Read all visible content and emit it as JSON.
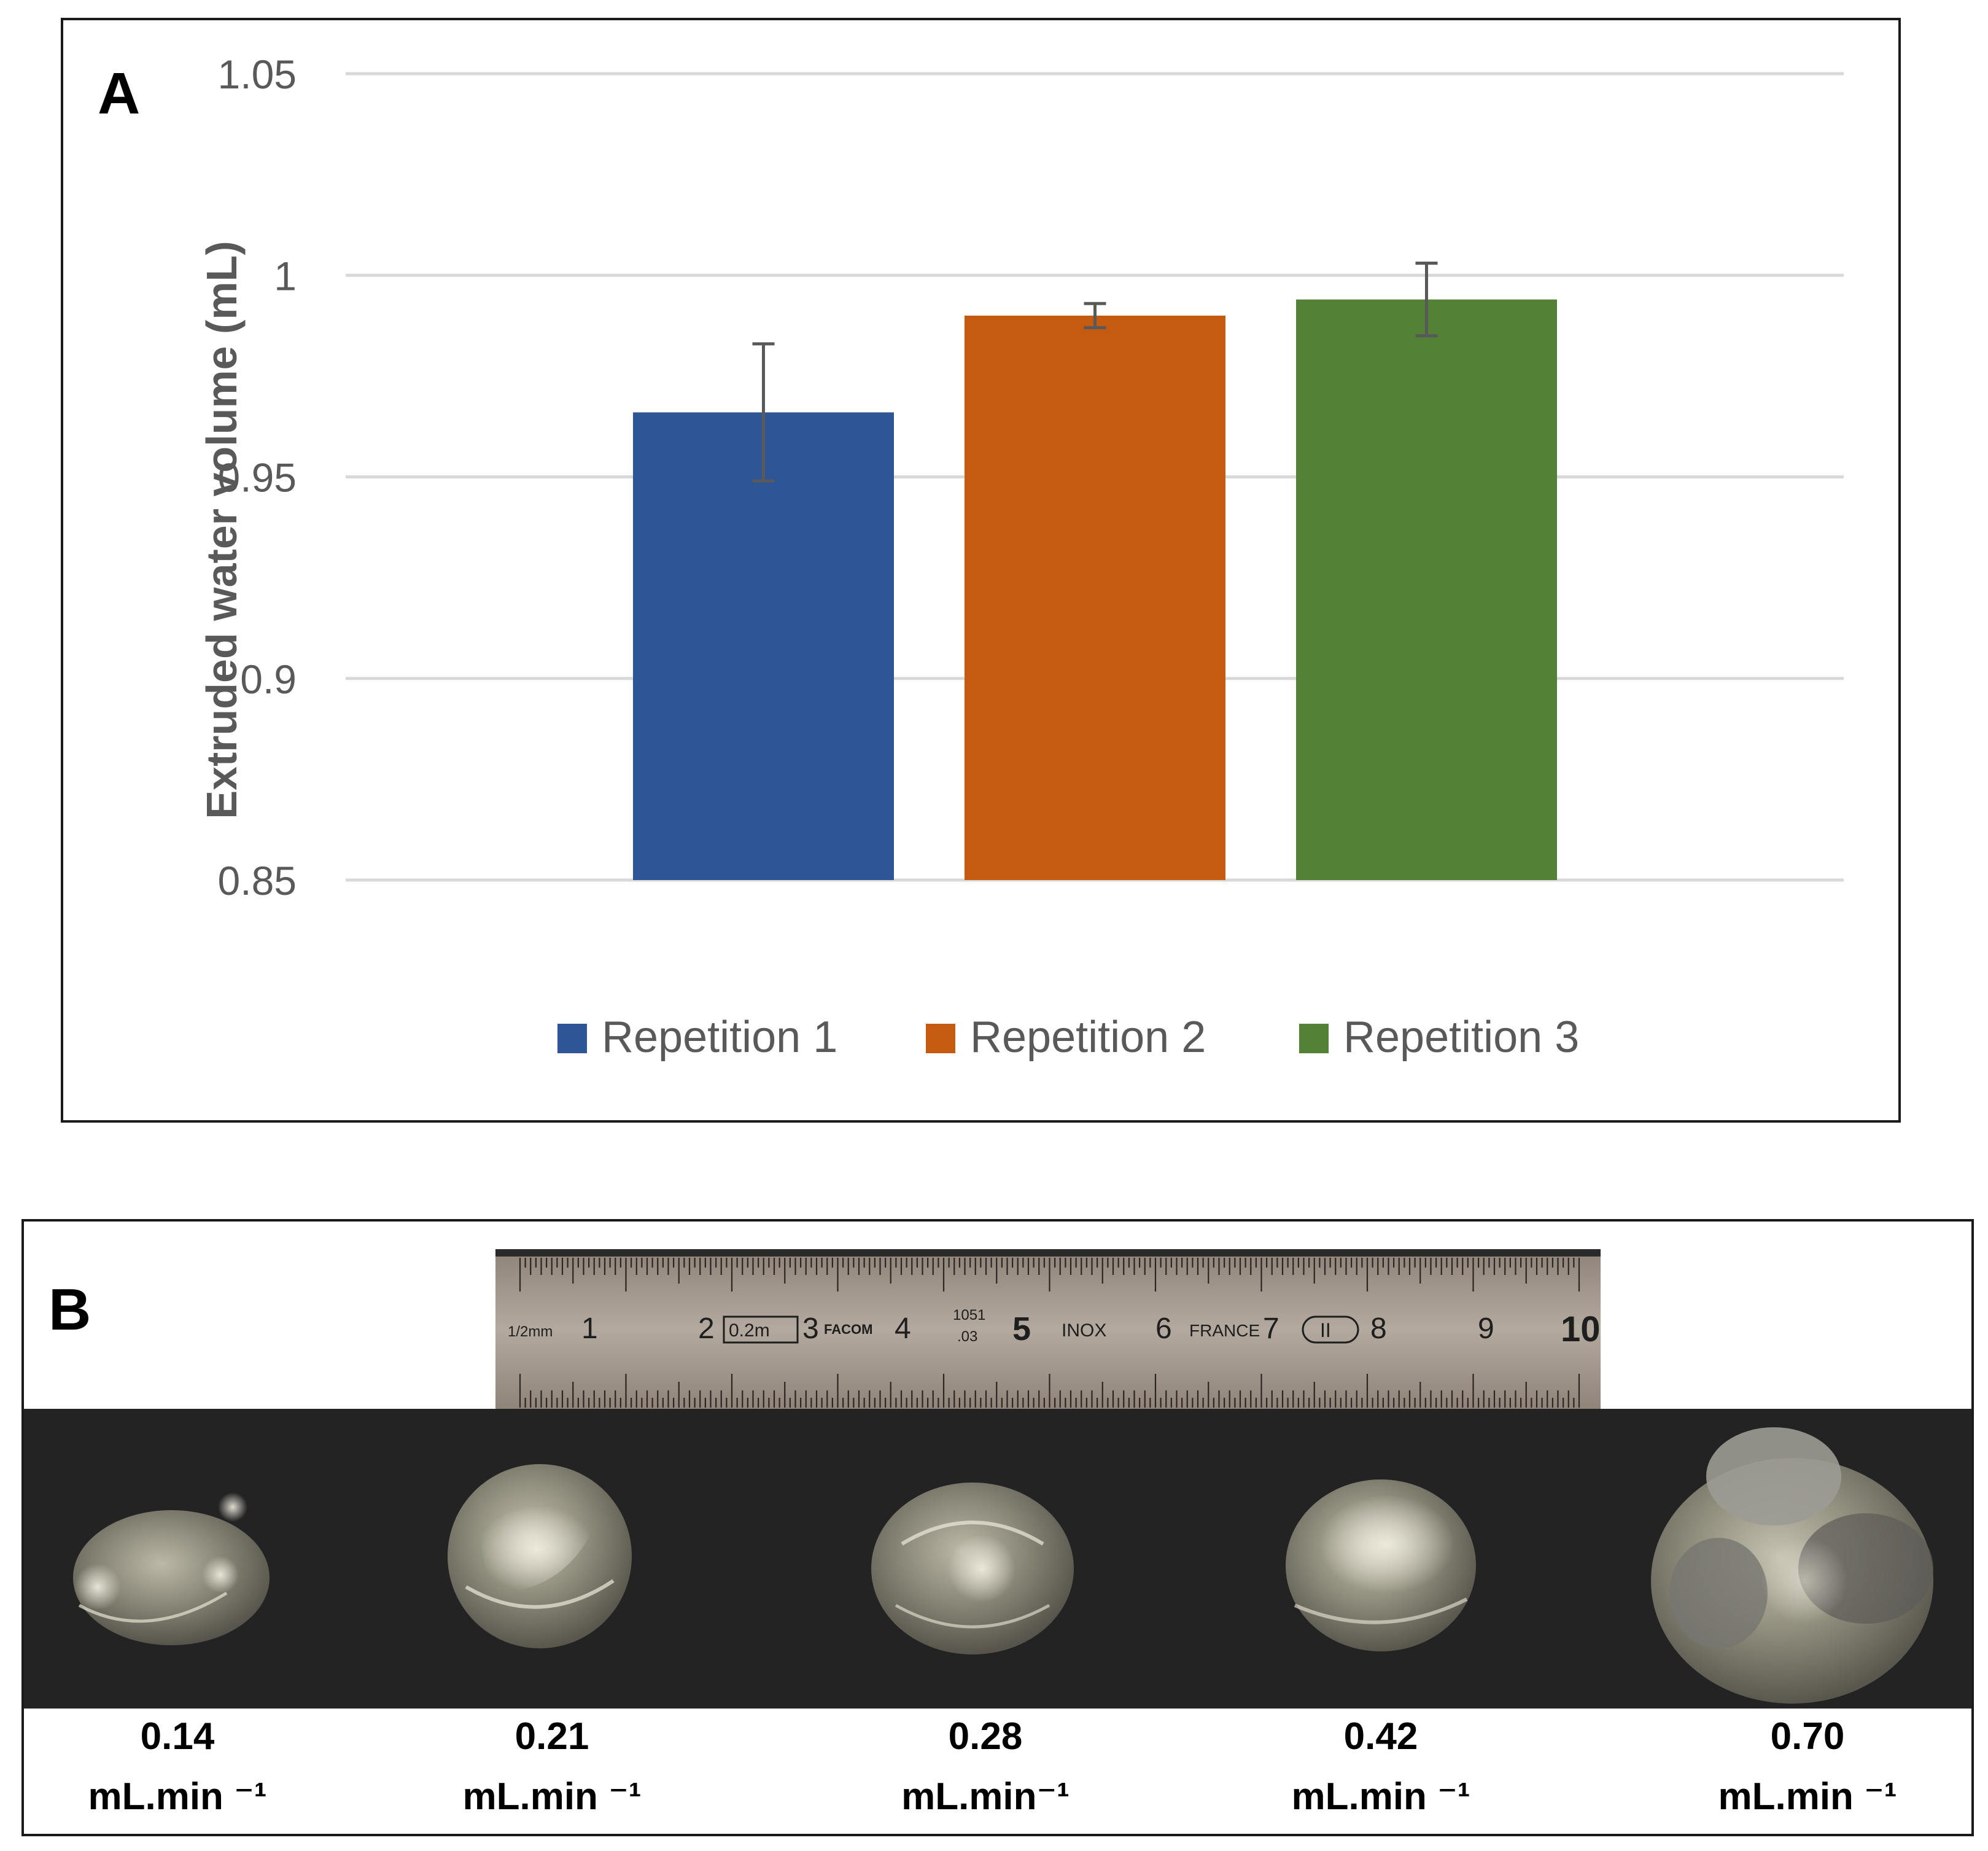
{
  "panel_a": {
    "letter": "A",
    "chart_data": {
      "type": "bar",
      "title": "",
      "xlabel": "",
      "ylabel": "Extruded water volume (mL)",
      "ylim": [
        0.85,
        1.05
      ],
      "yticks": [
        "0.85",
        "0.9",
        "0.95",
        "1",
        "1.05"
      ],
      "ytick_values": [
        0.85,
        0.9,
        0.95,
        1.0,
        1.05
      ],
      "grid": true,
      "legend_position": "bottom-center",
      "series": [
        {
          "name": "Repetition 1",
          "value": 0.966,
          "error": 0.017,
          "color": "#2E5596"
        },
        {
          "name": "Repetition 2",
          "value": 0.99,
          "error": 0.003,
          "color": "#C55A11"
        },
        {
          "name": "Repetition 3",
          "value": 0.994,
          "error": 0.009,
          "color": "#538135"
        }
      ]
    }
  },
  "panel_b": {
    "letter": "B",
    "ruler": {
      "marks": [
        "1/2mm",
        "1",
        "2",
        "0.2m",
        "3",
        "FACOM",
        "4",
        "1051",
        ".03",
        "5",
        "INOX",
        "6",
        "FRANCE",
        "7",
        "II",
        "8",
        "9",
        "10"
      ],
      "background": "#A89E93"
    },
    "photo_background": "#222222",
    "samples": [
      {
        "value": "0.14",
        "unit": "mL.min ⁻¹"
      },
      {
        "value": "0.21",
        "unit": "mL.min ⁻¹"
      },
      {
        "value": "0.28",
        "unit": "mL.min⁻¹"
      },
      {
        "value": "0.42",
        "unit": "mL.min ⁻¹"
      },
      {
        "value": "0.70",
        "unit": "mL.min ⁻¹"
      }
    ]
  }
}
